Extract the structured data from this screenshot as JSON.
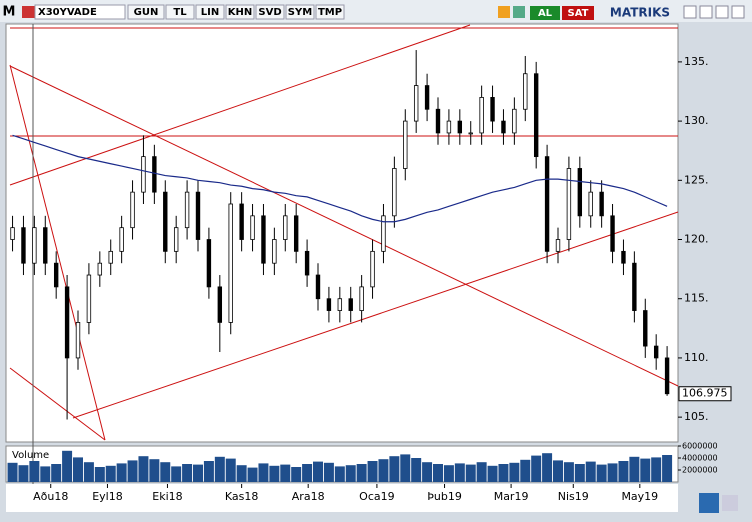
{
  "toolbar": {
    "logo": "M",
    "symbol": "X30YVADE",
    "buttons": [
      "GUN",
      "TL",
      "LIN",
      "KHN",
      "SVD",
      "SYM",
      "TMP"
    ],
    "buy": "AL",
    "sell": "SAT",
    "brand": "MATRIKS"
  },
  "chart_data": {
    "type": "candlestick",
    "open": [
      120,
      121,
      118,
      121,
      118,
      116,
      110,
      113,
      117,
      118,
      119,
      121,
      124,
      127,
      124,
      119,
      121,
      124,
      120,
      116,
      113,
      123,
      120,
      122,
      118,
      120,
      122,
      119,
      117,
      115,
      114,
      115,
      114,
      116,
      119,
      122,
      126,
      130,
      133,
      131,
      129,
      130,
      129,
      129,
      132,
      130,
      129,
      131,
      134,
      127,
      119,
      120,
      126,
      122,
      124,
      122,
      119,
      118,
      114,
      111,
      110
    ],
    "high": [
      122,
      122,
      122,
      122,
      119,
      117,
      114,
      118,
      119,
      120,
      122,
      125,
      128.8,
      128,
      125,
      122,
      125,
      125,
      121,
      117,
      124,
      124,
      123,
      123,
      121,
      123,
      123,
      120,
      118,
      116,
      116,
      116,
      117,
      120,
      123,
      127,
      131,
      136,
      134,
      132,
      131,
      131,
      130,
      133,
      133,
      131,
      132,
      135.5,
      135,
      128,
      121,
      127,
      127,
      125,
      125,
      123,
      120,
      119,
      115,
      112,
      111
    ],
    "low": [
      119,
      117,
      117,
      117,
      115,
      104.8,
      109,
      112,
      116,
      117,
      118,
      120,
      123,
      123,
      118,
      118,
      120,
      119,
      115,
      110.5,
      112,
      119,
      119,
      117,
      117,
      119,
      118,
      116,
      114,
      113,
      113,
      113,
      113,
      115,
      118,
      121,
      125,
      129,
      130,
      128,
      128,
      128,
      128,
      128,
      129,
      128,
      128,
      130,
      126,
      118,
      118,
      119,
      121,
      121,
      121,
      118,
      117,
      113,
      110,
      109,
      106.8
    ],
    "close": [
      121,
      118,
      121,
      118,
      116,
      110,
      113,
      117,
      118,
      119,
      121,
      124,
      127,
      124,
      119,
      121,
      124,
      120,
      116,
      113,
      123,
      120,
      122,
      118,
      120,
      122,
      119,
      117,
      115,
      114,
      115,
      114,
      116,
      119,
      122,
      126,
      130,
      133,
      131,
      129,
      130,
      129,
      129,
      132,
      130,
      129,
      131,
      134,
      127,
      119,
      120,
      126,
      122,
      124,
      122,
      119,
      118,
      114,
      111,
      110,
      106.975
    ],
    "ma": [
      128.8,
      128.5,
      128.2,
      127.9,
      127.6,
      127.3,
      127.0,
      126.8,
      126.6,
      126.4,
      126.2,
      126.0,
      125.8,
      125.6,
      125.4,
      125.3,
      125.2,
      125.0,
      124.9,
      124.8,
      124.6,
      124.5,
      124.3,
      124.2,
      124.0,
      123.9,
      123.7,
      123.6,
      123.3,
      123.0,
      122.7,
      122.4,
      122.0,
      121.7,
      121.5,
      121.5,
      121.7,
      122.0,
      122.3,
      122.5,
      122.8,
      123.1,
      123.4,
      123.7,
      124.0,
      124.2,
      124.4,
      124.7,
      125.0,
      125.1,
      125.1,
      125.0,
      124.9,
      124.8,
      124.7,
      124.5,
      124.3,
      124.0,
      123.6,
      123.2,
      122.8
    ],
    "volume_label": "Volume",
    "volume": [
      3200000,
      2800000,
      3500000,
      2600000,
      3000000,
      5200000,
      4100000,
      3300000,
      2500000,
      2700000,
      3100000,
      3600000,
      4300000,
      3800000,
      3300000,
      2600000,
      3000000,
      2900000,
      3500000,
      4200000,
      3900000,
      2800000,
      2400000,
      3100000,
      2700000,
      2900000,
      2500000,
      3000000,
      3400000,
      3200000,
      2600000,
      2800000,
      3000000,
      3500000,
      3800000,
      4300000,
      4600000,
      4000000,
      3300000,
      3000000,
      2800000,
      3100000,
      2900000,
      3300000,
      2700000,
      3000000,
      3200000,
      3700000,
      4400000,
      4800000,
      3600000,
      3300000,
      3000000,
      3400000,
      2900000,
      3100000,
      3500000,
      4200000,
      3900000,
      4100000,
      4500000
    ],
    "xlim": [
      -0.6,
      61
    ],
    "ylim": [
      102.9,
      138.2
    ],
    "yticks": [
      {
        "value": 105,
        "label": "105."
      },
      {
        "value": 110,
        "label": "110."
      },
      {
        "value": 115,
        "label": "115."
      },
      {
        "value": 120,
        "label": "120."
      },
      {
        "value": 125,
        "label": "125."
      },
      {
        "value": 130,
        "label": "130."
      },
      {
        "value": 135,
        "label": "135."
      }
    ],
    "vlim": [
      0,
      6000000
    ],
    "vticks": [
      2000000,
      4000000,
      6000000
    ],
    "xticks": [
      {
        "value": 3.5,
        "label": "Aðu18"
      },
      {
        "value": 8.7,
        "label": "Eyl18"
      },
      {
        "value": 14.2,
        "label": "Eki18"
      },
      {
        "value": 21,
        "label": "Kas18"
      },
      {
        "value": 27.1,
        "label": "Ara18"
      },
      {
        "value": 33.4,
        "label": "Oca19"
      },
      {
        "value": 39.6,
        "label": "Þub19"
      },
      {
        "value": 45.7,
        "label": "Mar19"
      },
      {
        "value": 51.4,
        "label": "Nis19"
      },
      {
        "value": 57.5,
        "label": "May19"
      }
    ],
    "up_color": "#ffffff",
    "down_color": "#000000",
    "ma_color": "#1a2a8a",
    "volume_color": "#1f4e8c"
  }
}
